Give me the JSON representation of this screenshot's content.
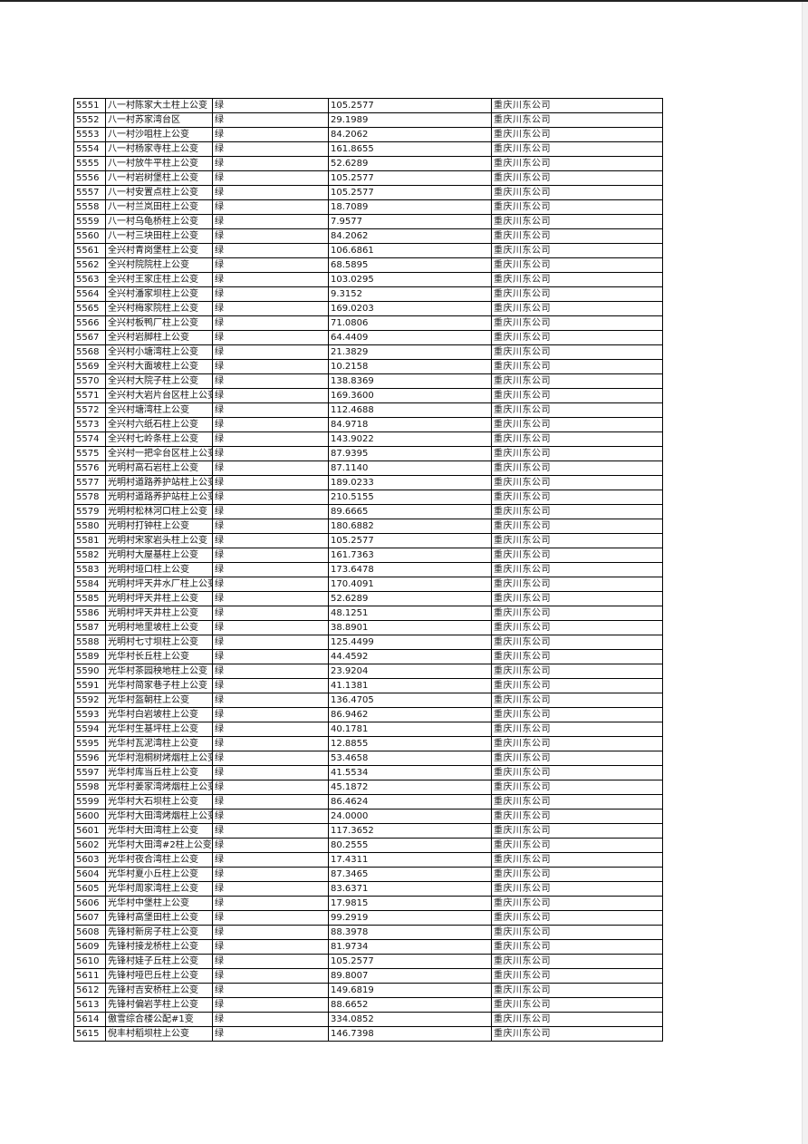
{
  "table": {
    "rows": [
      [
        "5551",
        "八一村陈家大土柱上公变",
        "绿",
        "105.2577",
        "重庆川东公司"
      ],
      [
        "5552",
        "八一村苏家湾台区",
        "绿",
        "29.1989",
        "重庆川东公司"
      ],
      [
        "5553",
        "八一村沙咀柱上公变",
        "绿",
        "84.2062",
        "重庆川东公司"
      ],
      [
        "5554",
        "八一村杨家寺柱上公变",
        "绿",
        "161.8655",
        "重庆川东公司"
      ],
      [
        "5555",
        "八一村放牛平柱上公变",
        "绿",
        "52.6289",
        "重庆川东公司"
      ],
      [
        "5556",
        "八一村岩树堡柱上公变",
        "绿",
        "105.2577",
        "重庆川东公司"
      ],
      [
        "5557",
        "八一村安置点柱上公变",
        "绿",
        "105.2577",
        "重庆川东公司"
      ],
      [
        "5558",
        "八一村兰岚田柱上公变",
        "绿",
        "18.7089",
        "重庆川东公司"
      ],
      [
        "5559",
        "八一村乌龟桥柱上公变",
        "绿",
        "7.9577",
        "重庆川东公司"
      ],
      [
        "5560",
        "八一村三块田柱上公变",
        "绿",
        "84.2062",
        "重庆川东公司"
      ],
      [
        "5561",
        "全兴村青岗堡柱上公变",
        "绿",
        "106.6861",
        "重庆川东公司"
      ],
      [
        "5562",
        "全兴村院院柱上公变",
        "绿",
        "68.5895",
        "重庆川东公司"
      ],
      [
        "5563",
        "全兴村王家庄柱上公变",
        "绿",
        "103.0295",
        "重庆川东公司"
      ],
      [
        "5564",
        "全兴村潘家坝柱上公变",
        "绿",
        "9.3152",
        "重庆川东公司"
      ],
      [
        "5565",
        "全兴村梅家院柱上公变",
        "绿",
        "169.0203",
        "重庆川东公司"
      ],
      [
        "5566",
        "全兴村板鸭厂柱上公变",
        "绿",
        "71.0806",
        "重庆川东公司"
      ],
      [
        "5567",
        "全兴村岩脚柱上公变",
        "绿",
        "64.4409",
        "重庆川东公司"
      ],
      [
        "5568",
        "全兴村小塘湾柱上公变",
        "绿",
        "21.3829",
        "重庆川东公司"
      ],
      [
        "5569",
        "全兴村大面坡柱上公变",
        "绿",
        "10.2158",
        "重庆川东公司"
      ],
      [
        "5570",
        "全兴村大院子柱上公变",
        "绿",
        "138.8369",
        "重庆川东公司"
      ],
      [
        "5571",
        "全兴村大岩片台区柱上公变",
        "绿",
        "169.3600",
        "重庆川东公司"
      ],
      [
        "5572",
        "全兴村塘湾柱上公变",
        "绿",
        "112.4688",
        "重庆川东公司"
      ],
      [
        "5573",
        "全兴村六纸石柱上公变",
        "绿",
        "84.9718",
        "重庆川东公司"
      ],
      [
        "5574",
        "全兴村七岭条柱上公变",
        "绿",
        "143.9022",
        "重庆川东公司"
      ],
      [
        "5575",
        "全兴村一把伞台区柱上公变",
        "绿",
        "87.9395",
        "重庆川东公司"
      ],
      [
        "5576",
        "光明村高石岩柱上公变",
        "绿",
        "87.1140",
        "重庆川东公司"
      ],
      [
        "5577",
        "光明村道路养护站柱上公变",
        "绿",
        "189.0233",
        "重庆川东公司"
      ],
      [
        "5578",
        "光明村道路养护站柱上公变",
        "绿",
        "210.5155",
        "重庆川东公司"
      ],
      [
        "5579",
        "光明村松林河口柱上公变",
        "绿",
        "89.6665",
        "重庆川东公司"
      ],
      [
        "5580",
        "光明村打钟柱上公变",
        "绿",
        "180.6882",
        "重庆川东公司"
      ],
      [
        "5581",
        "光明村宋家岩头柱上公变",
        "绿",
        "105.2577",
        "重庆川东公司"
      ],
      [
        "5582",
        "光明村大屋基柱上公变",
        "绿",
        "161.7363",
        "重庆川东公司"
      ],
      [
        "5583",
        "光明村垭口柱上公变",
        "绿",
        "173.6478",
        "重庆川东公司"
      ],
      [
        "5584",
        "光明村坪天井水厂柱上公变",
        "绿",
        "170.4091",
        "重庆川东公司"
      ],
      [
        "5585",
        "光明村坪天井柱上公变",
        "绿",
        "52.6289",
        "重庆川东公司"
      ],
      [
        "5586",
        "光明村坪天井柱上公变",
        "绿",
        "48.1251",
        "重庆川东公司"
      ],
      [
        "5587",
        "光明村地里坡柱上公变",
        "绿",
        "38.8901",
        "重庆川东公司"
      ],
      [
        "5588",
        "光明村七寸坝柱上公变",
        "绿",
        "125.4499",
        "重庆川东公司"
      ],
      [
        "5589",
        "光华村长丘柱上公变",
        "绿",
        "44.4592",
        "重庆川东公司"
      ],
      [
        "5590",
        "光华村茶园秧地柱上公变",
        "绿",
        "23.9204",
        "重庆川东公司"
      ],
      [
        "5591",
        "光华村简家巷子柱上公变",
        "绿",
        "41.1381",
        "重庆川东公司"
      ],
      [
        "5592",
        "光华村盔朝柱上公变",
        "绿",
        "136.4705",
        "重庆川东公司"
      ],
      [
        "5593",
        "光华村白岩坡柱上公变",
        "绿",
        "86.9462",
        "重庆川东公司"
      ],
      [
        "5594",
        "光华村生基坪柱上公变",
        "绿",
        "40.1781",
        "重庆川东公司"
      ],
      [
        "5595",
        "光华村瓦泥湾柱上公变",
        "绿",
        "12.8855",
        "重庆川东公司"
      ],
      [
        "5596",
        "光华村泡桐树烤烟柱上公变",
        "绿",
        "53.4658",
        "重庆川东公司"
      ],
      [
        "5597",
        "光华村库当丘柱上公变",
        "绿",
        "41.5534",
        "重庆川东公司"
      ],
      [
        "5598",
        "光华村姜家湾烤烟柱上公变",
        "绿",
        "45.1872",
        "重庆川东公司"
      ],
      [
        "5599",
        "光华村大石坝柱上公变",
        "绿",
        "86.4624",
        "重庆川东公司"
      ],
      [
        "5600",
        "光华村大田湾烤烟柱上公变",
        "绿",
        "24.0000",
        "重庆川东公司"
      ],
      [
        "5601",
        "光华村大田湾柱上公变",
        "绿",
        "117.3652",
        "重庆川东公司"
      ],
      [
        "5602",
        "光华村大田湾#2柱上公变",
        "绿",
        "80.2555",
        "重庆川东公司"
      ],
      [
        "5603",
        "光华村夜合湾柱上公变",
        "绿",
        "17.4311",
        "重庆川东公司"
      ],
      [
        "5604",
        "光华村夏小丘柱上公变",
        "绿",
        "87.3465",
        "重庆川东公司"
      ],
      [
        "5605",
        "光华村周家湾柱上公变",
        "绿",
        "83.6371",
        "重庆川东公司"
      ],
      [
        "5606",
        "光华村中堡柱上公变",
        "绿",
        "17.9815",
        "重庆川东公司"
      ],
      [
        "5607",
        "先锋村高堡田柱上公变",
        "绿",
        "99.2919",
        "重庆川东公司"
      ],
      [
        "5608",
        "先锋村新房子柱上公变",
        "绿",
        "88.3978",
        "重庆川东公司"
      ],
      [
        "5609",
        "先锋村接龙桥柱上公变",
        "绿",
        "81.9734",
        "重庆川东公司"
      ],
      [
        "5610",
        "先锋村娃子丘柱上公变",
        "绿",
        "105.2577",
        "重庆川东公司"
      ],
      [
        "5611",
        "先锋村哑巴丘柱上公变",
        "绿",
        "89.8007",
        "重庆川东公司"
      ],
      [
        "5612",
        "先锋村吉安桥柱上公变",
        "绿",
        "149.6819",
        "重庆川东公司"
      ],
      [
        "5613",
        "先锋村偏岩芋柱上公变",
        "绿",
        "88.6652",
        "重庆川东公司"
      ],
      [
        "5614",
        "傲雪综合楼公配#1变",
        "绿",
        "334.0852",
        "重庆川东公司"
      ],
      [
        "5615",
        "倪丰村稻坝柱上公变",
        "绿",
        "146.7398",
        "重庆川东公司"
      ]
    ]
  }
}
